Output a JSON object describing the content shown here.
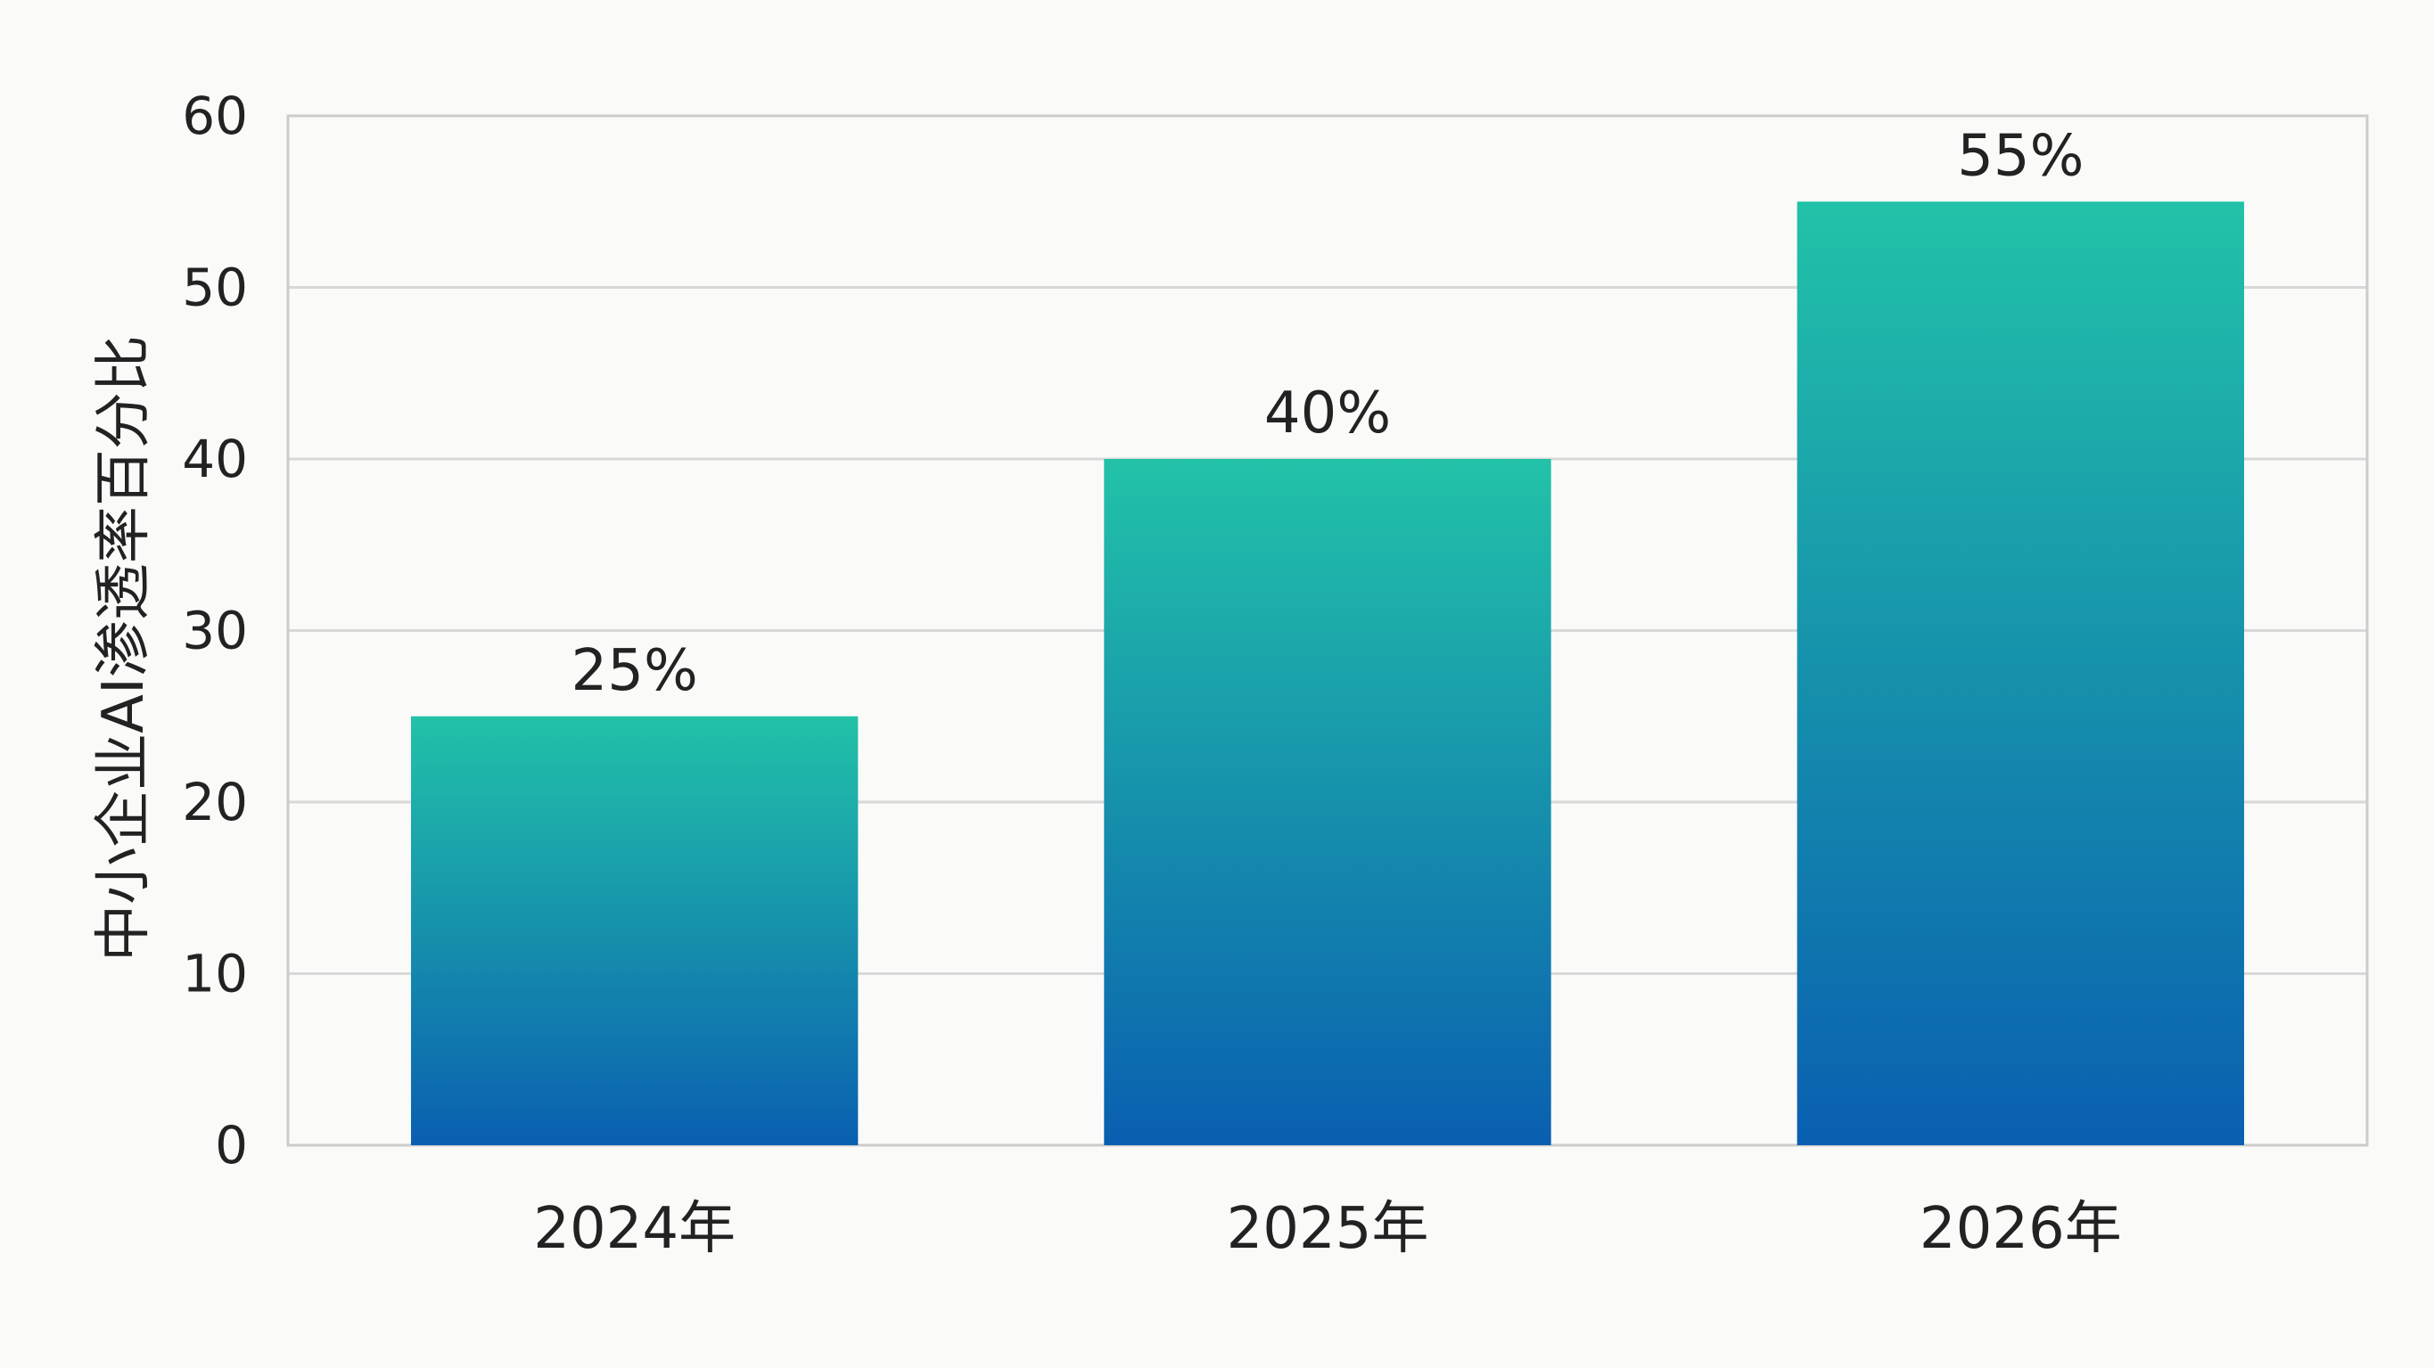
{
  "chart_data": {
    "type": "bar",
    "title": "",
    "xlabel": "",
    "ylabel": "中小企业AI渗透率百分比",
    "categories": [
      "2024年",
      "2025年",
      "2026年"
    ],
    "values": [
      25,
      40,
      55
    ],
    "value_labels": [
      "25%",
      "40%",
      "55%"
    ],
    "ylim": [
      0,
      60
    ],
    "yticks": [
      0,
      10,
      20,
      30,
      40,
      50,
      60
    ],
    "grid": true,
    "legend": "none",
    "colors": {
      "bar_top": "#22c2a8",
      "bar_bottom": "#0a5fb0",
      "grid": "#d8d8d8",
      "frame": "#cccccc",
      "text": "#222222"
    }
  }
}
